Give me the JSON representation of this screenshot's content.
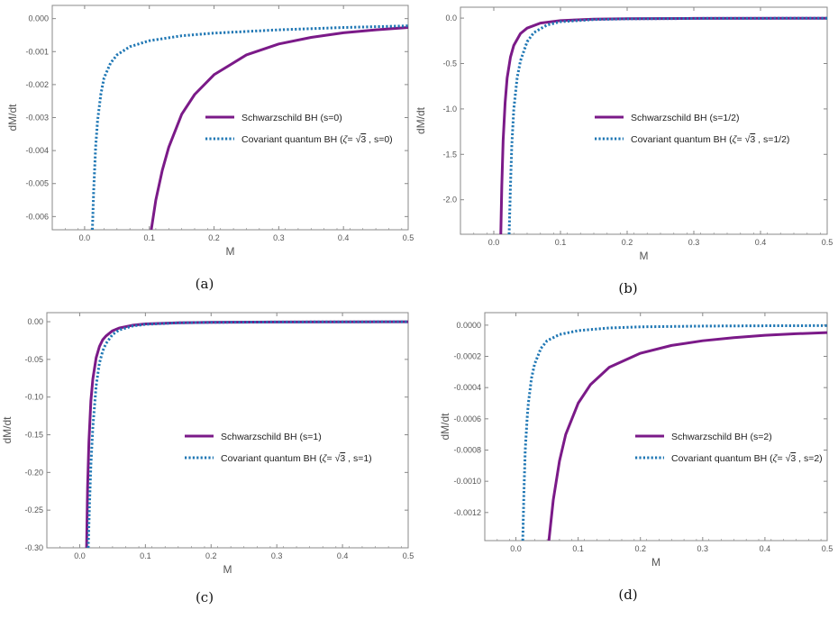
{
  "figure": {
    "colors": {
      "schwarzschild": "#7b1a88",
      "quantum": "#1f77b4",
      "frame": "#888888"
    }
  },
  "chart_data": [
    {
      "type": "line",
      "caption": "(a)",
      "xlabel": "M",
      "ylabel": "dM/dt",
      "xlim": [
        -0.05,
        0.5
      ],
      "ylim": [
        -0.0064,
        0.0004
      ],
      "xticks": [
        0.0,
        0.1,
        0.2,
        0.3,
        0.4,
        0.5
      ],
      "xtick_labels": [
        "0.0",
        "0.1",
        "0.2",
        "0.3",
        "0.4",
        "0.5"
      ],
      "yticks": [
        0.0,
        -0.001,
        -0.002,
        -0.003,
        -0.004,
        -0.005,
        -0.006
      ],
      "ytick_labels": [
        "0.000",
        "-0.001",
        "-0.002",
        "-0.003",
        "-0.004",
        "-0.005",
        "-0.006"
      ],
      "legend_position": "center-right",
      "series": [
        {
          "name": "Schwarzschild BH (s=0)",
          "style": "solid",
          "x": [
            0.103,
            0.11,
            0.12,
            0.13,
            0.15,
            0.17,
            0.2,
            0.25,
            0.3,
            0.35,
            0.4,
            0.45,
            0.5
          ],
          "y": [
            -0.0064,
            -0.0055,
            -0.0046,
            -0.0039,
            -0.0029,
            -0.0023,
            -0.0017,
            -0.0011,
            -0.00077,
            -0.00057,
            -0.00043,
            -0.00034,
            -0.00027
          ]
        },
        {
          "name_prefix": "Covariant quantum BH (",
          "name_symbol": "ζ",
          "name_mid": "= ",
          "name_radicand": "3",
          "name_suffix": " , s=0)",
          "style": "dotted",
          "x": [
            0.012,
            0.014,
            0.017,
            0.02,
            0.025,
            0.03,
            0.04,
            0.05,
            0.07,
            0.1,
            0.15,
            0.2,
            0.3,
            0.4,
            0.5
          ],
          "y": [
            -0.0064,
            -0.0052,
            -0.0039,
            -0.0031,
            -0.0023,
            -0.0018,
            -0.00135,
            -0.0011,
            -0.00085,
            -0.00067,
            -0.00052,
            -0.00044,
            -0.00034,
            -0.00027,
            -0.00022
          ]
        }
      ]
    },
    {
      "type": "line",
      "caption": "(b)",
      "xlabel": "M",
      "ylabel": "dM/dt",
      "xlim": [
        -0.05,
        0.5
      ],
      "ylim": [
        -2.38,
        0.12
      ],
      "xticks": [
        0.0,
        0.1,
        0.2,
        0.3,
        0.4,
        0.5
      ],
      "xtick_labels": [
        "0.0",
        "0.1",
        "0.2",
        "0.3",
        "0.4",
        "0.5"
      ],
      "yticks": [
        0.0,
        -0.5,
        -1.0,
        -1.5,
        -2.0
      ],
      "ytick_labels": [
        "0.0",
        "-0.5",
        "-1.0",
        "-1.5",
        "-2.0"
      ],
      "legend_position": "center-right",
      "series": [
        {
          "name": "Schwarzschild BH (s=1/2)",
          "style": "solid",
          "x": [
            0.0105,
            0.012,
            0.014,
            0.017,
            0.02,
            0.025,
            0.03,
            0.04,
            0.05,
            0.07,
            0.1,
            0.15,
            0.2,
            0.3,
            0.5
          ],
          "y": [
            -2.38,
            -1.85,
            -1.35,
            -0.93,
            -0.66,
            -0.43,
            -0.3,
            -0.17,
            -0.11,
            -0.055,
            -0.027,
            -0.012,
            -0.007,
            -0.003,
            -0.001
          ]
        },
        {
          "name_prefix": "Covariant quantum BH (",
          "name_symbol": "ζ",
          "name_mid": "= ",
          "name_radicand": "3",
          "name_suffix": " , s=1/2)",
          "style": "dotted",
          "x": [
            0.023,
            0.025,
            0.027,
            0.03,
            0.035,
            0.04,
            0.05,
            0.06,
            0.08,
            0.1,
            0.15,
            0.2,
            0.3,
            0.5
          ],
          "y": [
            -2.38,
            -1.85,
            -1.4,
            -1.0,
            -0.66,
            -0.47,
            -0.26,
            -0.16,
            -0.075,
            -0.04,
            -0.016,
            -0.008,
            -0.0035,
            -0.0012
          ]
        }
      ]
    },
    {
      "type": "line",
      "caption": "(c)",
      "xlabel": "M",
      "ylabel": "dM/dt",
      "xlim": [
        -0.05,
        0.5
      ],
      "ylim": [
        -0.3,
        0.012
      ],
      "xticks": [
        0.0,
        0.1,
        0.2,
        0.3,
        0.4,
        0.5
      ],
      "xtick_labels": [
        "0.0",
        "0.1",
        "0.2",
        "0.3",
        "0.4",
        "0.5"
      ],
      "yticks": [
        0.0,
        -0.05,
        -0.1,
        -0.15,
        -0.2,
        -0.25,
        -0.3
      ],
      "ytick_labels": [
        "0.00",
        "-0.05",
        "-0.10",
        "-0.15",
        "-0.20",
        "-0.25",
        "-0.30"
      ],
      "legend_position": "center-right",
      "series": [
        {
          "name": "Schwarzschild BH (s=1)",
          "style": "solid",
          "x": [
            0.0105,
            0.012,
            0.014,
            0.017,
            0.02,
            0.025,
            0.03,
            0.035,
            0.04,
            0.05,
            0.06,
            0.08,
            0.1,
            0.15,
            0.2,
            0.3,
            0.5
          ],
          "y": [
            -0.3,
            -0.22,
            -0.16,
            -0.105,
            -0.076,
            -0.048,
            -0.033,
            -0.024,
            -0.019,
            -0.012,
            -0.0085,
            -0.0048,
            -0.003,
            -0.0014,
            -0.0008,
            -0.0004,
            -0.0001
          ]
        },
        {
          "name_prefix": "Covariant quantum BH (",
          "name_symbol": "ζ",
          "name_mid": "= ",
          "name_radicand": "3",
          "name_suffix": " , s=1)",
          "style": "dotted",
          "x": [
            0.013,
            0.015,
            0.017,
            0.02,
            0.025,
            0.03,
            0.035,
            0.04,
            0.05,
            0.06,
            0.08,
            0.1,
            0.15,
            0.2,
            0.3,
            0.5
          ],
          "y": [
            -0.3,
            -0.24,
            -0.19,
            -0.14,
            -0.085,
            -0.055,
            -0.039,
            -0.029,
            -0.017,
            -0.011,
            -0.0058,
            -0.0035,
            -0.0015,
            -0.0009,
            -0.0004,
            -0.0001
          ]
        }
      ]
    },
    {
      "type": "line",
      "caption": "(d)",
      "xlabel": "M",
      "ylabel": "dM/dt",
      "xlim": [
        -0.05,
        0.5
      ],
      "ylim": [
        -0.00138,
        8e-05
      ],
      "xticks": [
        0.0,
        0.1,
        0.2,
        0.3,
        0.4,
        0.5
      ],
      "xtick_labels": [
        "0.0",
        "0.1",
        "0.2",
        "0.3",
        "0.4",
        "0.5"
      ],
      "yticks": [
        0.0,
        -0.0002,
        -0.0004,
        -0.0006,
        -0.0008,
        -0.001,
        -0.0012
      ],
      "ytick_labels": [
        "0.0000",
        "-0.0002",
        "-0.0004",
        "-0.0006",
        "-0.0008",
        "-0.0010",
        "-0.0012"
      ],
      "legend_position": "center-right",
      "series": [
        {
          "name": "Schwarzschild BH (s=2)",
          "style": "solid",
          "x": [
            0.053,
            0.06,
            0.07,
            0.08,
            0.1,
            0.12,
            0.15,
            0.2,
            0.25,
            0.3,
            0.35,
            0.4,
            0.45,
            0.5
          ],
          "y": [
            -0.00138,
            -0.00112,
            -0.00087,
            -0.0007,
            -0.0005,
            -0.00038,
            -0.00027,
            -0.00018,
            -0.00013,
            -0.0001,
            -8e-05,
            -6.5e-05,
            -5.5e-05,
            -4.8e-05
          ]
        },
        {
          "name_prefix": "Covariant quantum BH (",
          "name_symbol": "ζ",
          "name_mid": "= ",
          "name_radicand": "3",
          "name_suffix": " , s=2)",
          "style": "dotted",
          "x": [
            0.011,
            0.013,
            0.015,
            0.018,
            0.02,
            0.025,
            0.03,
            0.04,
            0.05,
            0.07,
            0.1,
            0.15,
            0.2,
            0.3,
            0.4,
            0.5
          ],
          "y": [
            -0.00138,
            -0.00105,
            -0.0008,
            -0.0006,
            -0.0005,
            -0.00034,
            -0.00025,
            -0.00015,
            -0.0001,
            -6e-05,
            -3.5e-05,
            -1.8e-05,
            -1.1e-05,
            -6e-06,
            -4e-06,
            -3e-06
          ]
        }
      ]
    }
  ]
}
